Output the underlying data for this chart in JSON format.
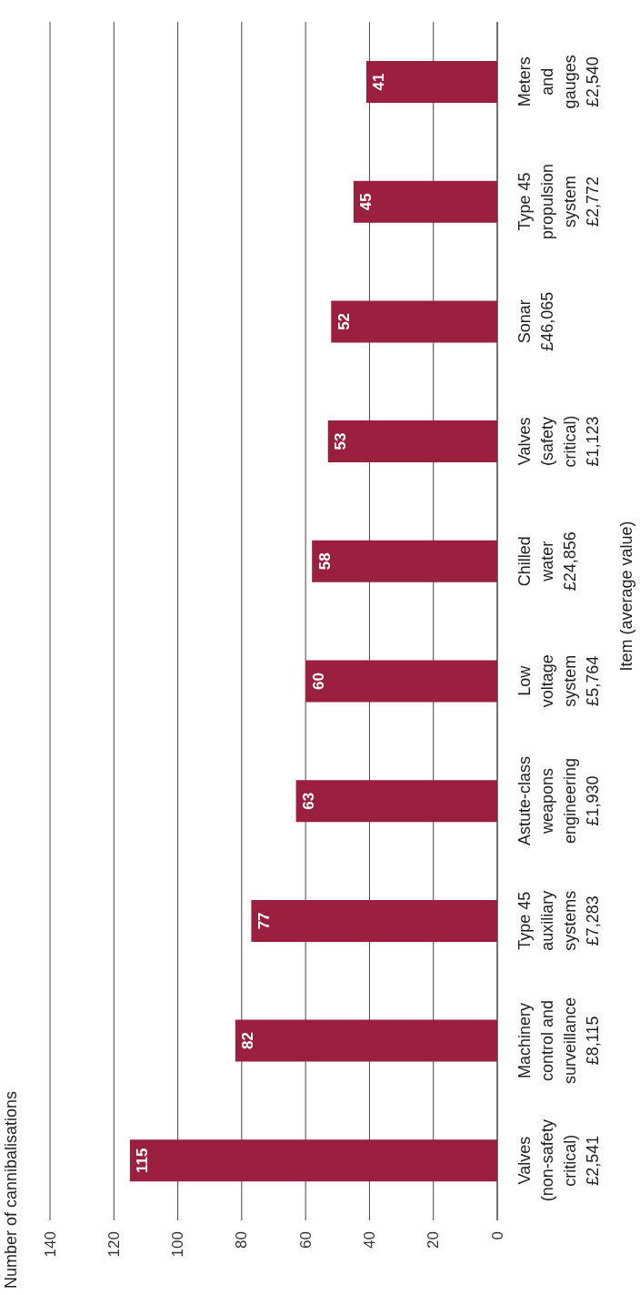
{
  "chart_data": {
    "type": "bar",
    "orientation": "horizontal",
    "title": "Number of cannibalisations",
    "ylabel": "Item (average value)",
    "categories": [
      "Meters\nand\ngauges\n£2,540",
      "Type 45\npropulsion\nsystem\n£2,772",
      "Sonar\n£46,065",
      "Valves\n(safety\ncritical)\n£1,123",
      "Chilled\nwater\n£24,856",
      "Low\nvoltage\nsystem\n£5,764",
      "Astute-class\nweapons\nengineering\n£1,930",
      "Type 45\nauxiliary\nsystems\n£7,283",
      "Machinery\ncontrol and\nsurveillance\n£8,115",
      "Valves\n(non-safety\ncritical)\n£2,541"
    ],
    "values": [
      41,
      45,
      52,
      53,
      58,
      60,
      63,
      77,
      82,
      115
    ],
    "color": "#9b2040",
    "xlim": [
      140,
      0
    ],
    "xticks": [
      0,
      20,
      40,
      60,
      80,
      100,
      120,
      140
    ],
    "grid": "x",
    "data_labels": true
  }
}
